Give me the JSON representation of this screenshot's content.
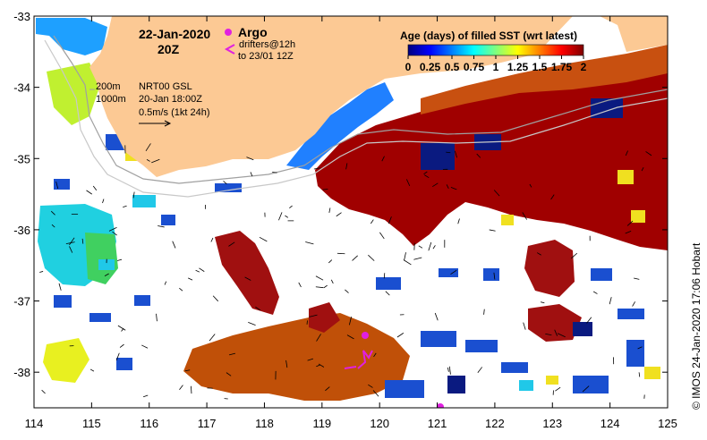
{
  "map": {
    "date": "22-Jan-2020",
    "hour": "20Z",
    "argo_label": "Argo",
    "drifters_line1": "drifters@12h",
    "drifters_line2": "to 23/01 12Z",
    "isobath_200": "200m",
    "isobath_1000": "1000m",
    "product": "NRT00 GSL",
    "product_time": "20-Jan 18:00Z",
    "vector_scale": "0.5m/s (1kt 24h)",
    "credit": "© IMOS 24-Jan-2020 17:06 Hobart",
    "colors": {
      "land": "#fcc994",
      "argo": "#e020e0",
      "drifter": "#e020e0",
      "no_data": "#ffffff"
    }
  },
  "colorbar": {
    "title": "Age (days) of filled SST (wrt latest)",
    "ticks": [
      "0",
      "0.25",
      "0.5",
      "0.75",
      "1",
      "1.25",
      "1.5",
      "1.75",
      "2"
    ],
    "tick_values": [
      0,
      0.25,
      0.5,
      0.75,
      1,
      1.25,
      1.5,
      1.75,
      2
    ],
    "range": [
      0,
      2
    ],
    "colormap": "jet",
    "colors": [
      "#00007f",
      "#0000ff",
      "#007fff",
      "#00ffff",
      "#7fff7f",
      "#ffff00",
      "#ff7f00",
      "#ff0000",
      "#7f0000"
    ]
  },
  "axes": {
    "x_ticks": [
      "114",
      "115",
      "116",
      "117",
      "118",
      "119",
      "120",
      "121",
      "122",
      "123",
      "124",
      "125"
    ],
    "x_values": [
      114,
      115,
      116,
      117,
      118,
      119,
      120,
      121,
      122,
      123,
      124,
      125
    ],
    "y_ticks": [
      "-33",
      "-34",
      "-35",
      "-36",
      "-37",
      "-38"
    ],
    "y_values": [
      -33,
      -34,
      -35,
      -36,
      -37,
      -38
    ],
    "lon_range": [
      114,
      125
    ],
    "lat_range": [
      -38.5,
      -33
    ]
  }
}
